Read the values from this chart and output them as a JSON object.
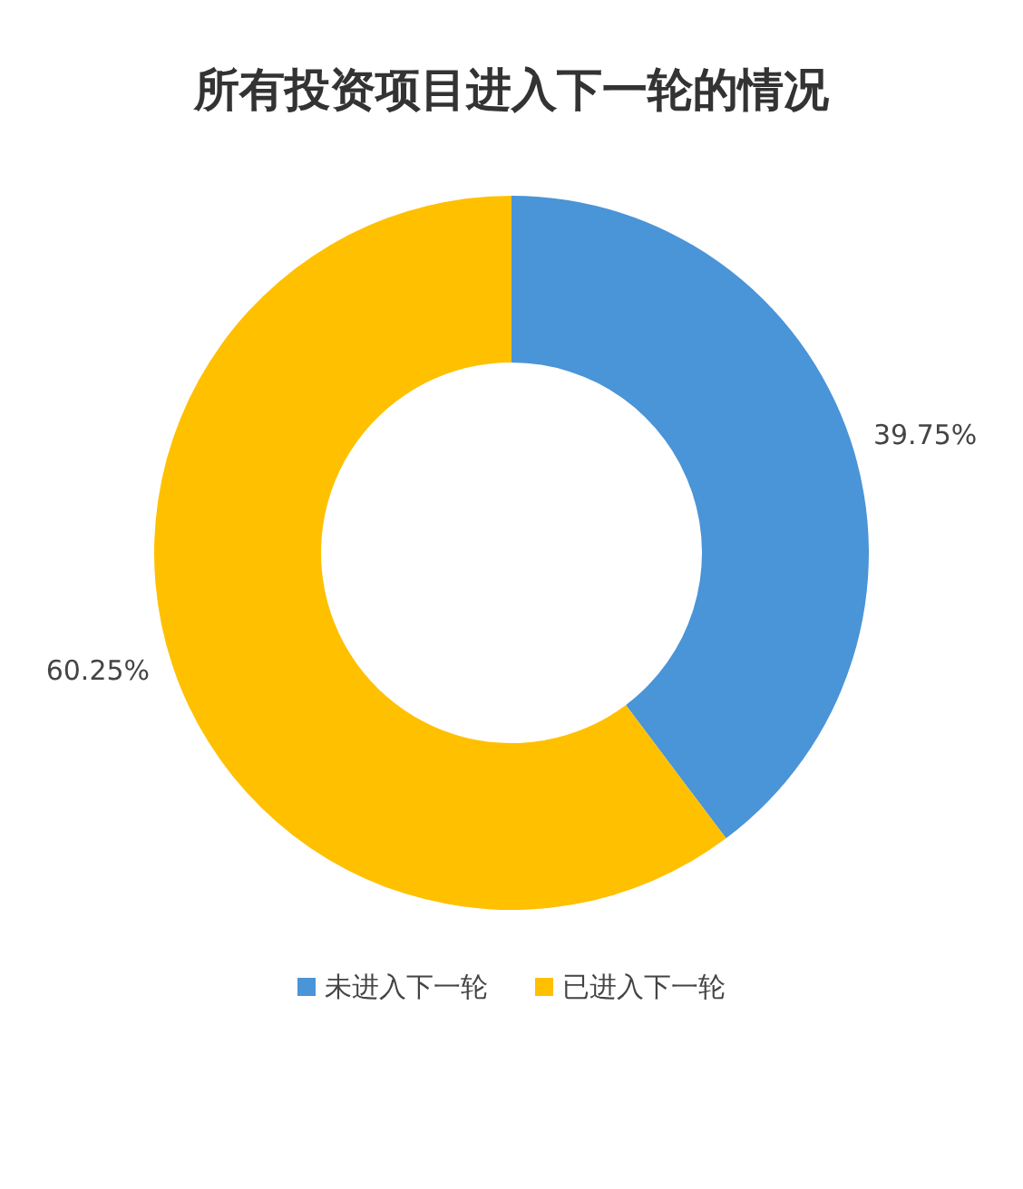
{
  "chart_data": {
    "type": "donut",
    "title": "所有投资项目进入下一轮的情况",
    "categories": [
      "未进入下一轮",
      "已进入下一轮"
    ],
    "values": [
      39.75,
      60.25
    ],
    "colors": [
      "#4a94d8",
      "#ffc000"
    ],
    "value_labels": [
      "39.75%",
      "60.25%"
    ],
    "legend": "bottom"
  }
}
